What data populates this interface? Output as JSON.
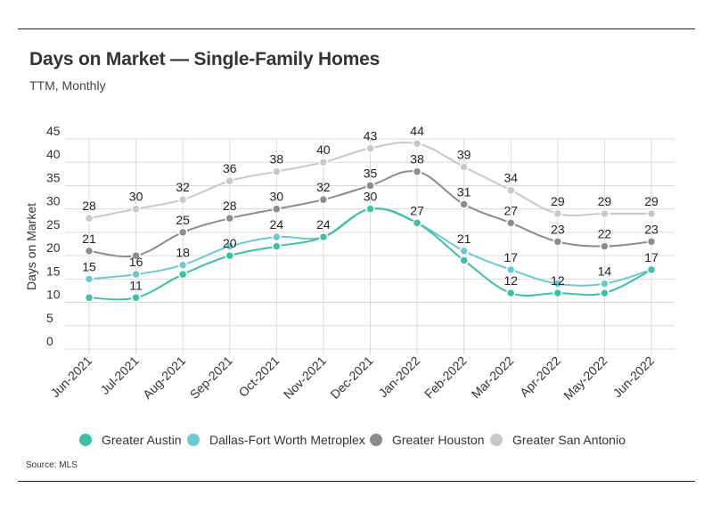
{
  "title": "Days on Market — Single-Family Homes",
  "subtitle": "TTM, Monthly",
  "source": "Source:  MLS",
  "chart_data": {
    "type": "line",
    "title": "Days on Market — Single-Family Homes",
    "subtitle": "TTM, Monthly",
    "xlabel": "",
    "ylabel": "Days on Market",
    "ylim": [
      0,
      45
    ],
    "yticks": [
      0,
      5,
      10,
      15,
      20,
      25,
      30,
      35,
      40,
      45
    ],
    "grid": true,
    "legend_position": "bottom",
    "categories": [
      "Jun-2021",
      "Jul-2021",
      "Aug-2021",
      "Sep-2021",
      "Oct-2021",
      "Nov-2021",
      "Dec-2021",
      "Jan-2022",
      "Feb-2022",
      "Mar-2022",
      "Apr-2022",
      "May-2022",
      "Jun-2022"
    ],
    "series": [
      {
        "name": "Greater San Antonio",
        "color": "#c8c8c8",
        "values": [
          28,
          30,
          32,
          36,
          38,
          40,
          43,
          44,
          39,
          34,
          29,
          29,
          29
        ],
        "labels": [
          "28",
          "30",
          "32",
          "36",
          "38",
          "40",
          "43",
          "44",
          "39",
          "34",
          "29",
          "29",
          "29"
        ]
      },
      {
        "name": "Greater Houston",
        "color": "#8c8c8c",
        "values": [
          21,
          20,
          25,
          28,
          30,
          32,
          35,
          38,
          31,
          27,
          23,
          22,
          23
        ],
        "labels": [
          "21",
          "",
          "25",
          "28",
          "30",
          "32",
          "35",
          "38",
          "31",
          "27",
          "23",
          "22",
          "23"
        ]
      },
      {
        "name": "Dallas-Fort Worth Metroplex",
        "color": "#6ec8d2",
        "values": [
          15,
          16,
          18,
          22,
          24,
          24,
          30,
          27,
          21,
          17,
          14,
          14,
          17
        ],
        "labels": [
          "15",
          "16",
          "18",
          "",
          "24",
          "24",
          "30",
          "",
          "21",
          "17",
          "",
          "14",
          "17"
        ]
      },
      {
        "name": "Greater Austin",
        "color": "#3fbfa4",
        "values": [
          11,
          11,
          16,
          20,
          22,
          24,
          30,
          27,
          19,
          12,
          12,
          12,
          17
        ],
        "labels": [
          "",
          "11",
          "",
          "20",
          "",
          "",
          "",
          "27",
          "",
          "12",
          "12",
          "",
          ""
        ]
      }
    ],
    "legend": [
      {
        "name": "Greater Austin",
        "color": "#3fbfa4"
      },
      {
        "name": "Dallas-Fort Worth Metroplex",
        "color": "#6ec8d2"
      },
      {
        "name": "Greater Houston",
        "color": "#8c8c8c"
      },
      {
        "name": "Greater San Antonio",
        "color": "#c8c8c8"
      }
    ]
  }
}
